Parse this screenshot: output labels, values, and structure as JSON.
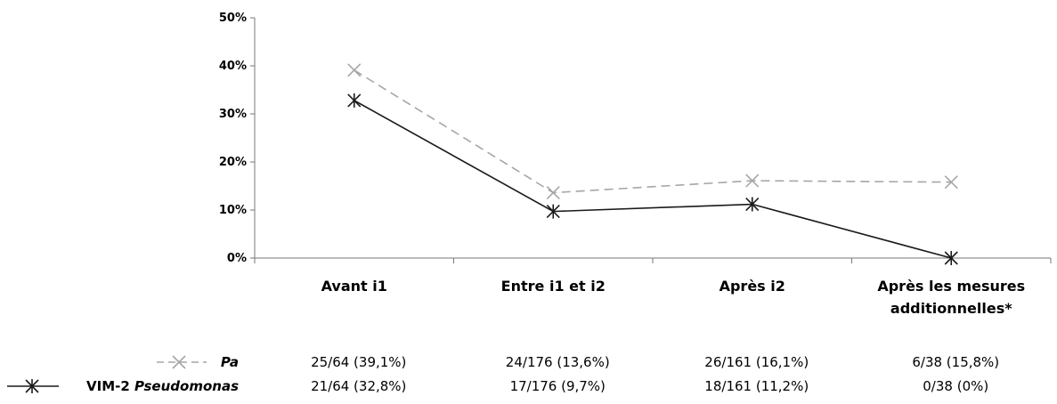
{
  "chart_data": {
    "type": "line",
    "categories": [
      [
        "Avant i1"
      ],
      [
        "Entre i1 et i2"
      ],
      [
        "Après i2"
      ],
      [
        "Après les mesures",
        "additionnelles*"
      ]
    ],
    "ylim": [
      0,
      50
    ],
    "yticks": [
      "0%",
      "10%",
      "20%",
      "30%",
      "40%",
      "50%"
    ],
    "series": [
      {
        "name": "Pa",
        "name_italic": "Pa",
        "values": [
          39.1,
          13.6,
          16.1,
          15.8
        ],
        "color": "#a6a6a6",
        "dashed": true,
        "table": [
          "25/64 (39,1%)",
          "24/176 (13,6%)",
          "26/161 (16,1%)",
          "6/38 (15,8%)"
        ]
      },
      {
        "name": "VIM-2 Pseudomonas",
        "name_plain": "VIM-2 ",
        "name_italic": "Pseudomonas",
        "values": [
          32.8,
          9.7,
          11.2,
          0
        ],
        "color": "#1a1a1a",
        "dashed": false,
        "table": [
          "21/64 (32,8%)",
          "17/176 (9,7%)",
          "18/161 (11,2%)",
          "0/38 (0%)"
        ]
      }
    ]
  }
}
